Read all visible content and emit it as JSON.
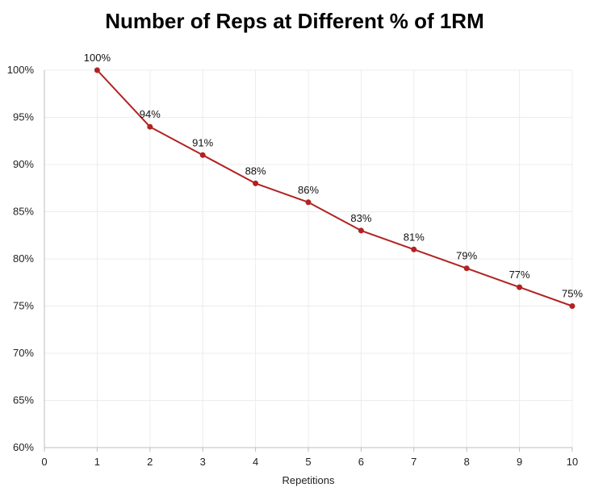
{
  "chart_data": {
    "type": "line",
    "title": "Number of Reps at Different % of 1RM",
    "xlabel": "Repetitions",
    "ylabel": "",
    "x": [
      1,
      2,
      3,
      4,
      5,
      6,
      7,
      8,
      9,
      10
    ],
    "series": [
      {
        "values": [
          100,
          94,
          91,
          88,
          86,
          83,
          81,
          79,
          77,
          75
        ],
        "labels": [
          "100%",
          "94%",
          "91%",
          "88%",
          "86%",
          "83%",
          "81%",
          "79%",
          "77%",
          "75%"
        ]
      }
    ],
    "xlim": [
      0,
      10
    ],
    "ylim": [
      60,
      100
    ],
    "x_ticks": [
      "0",
      "1",
      "2",
      "3",
      "4",
      "5",
      "6",
      "7",
      "8",
      "9",
      "10"
    ],
    "y_ticks": [
      "60%",
      "65%",
      "70%",
      "75%",
      "80%",
      "85%",
      "90%",
      "95%",
      "100%"
    ],
    "grid": true,
    "line_color": "#b22222"
  }
}
